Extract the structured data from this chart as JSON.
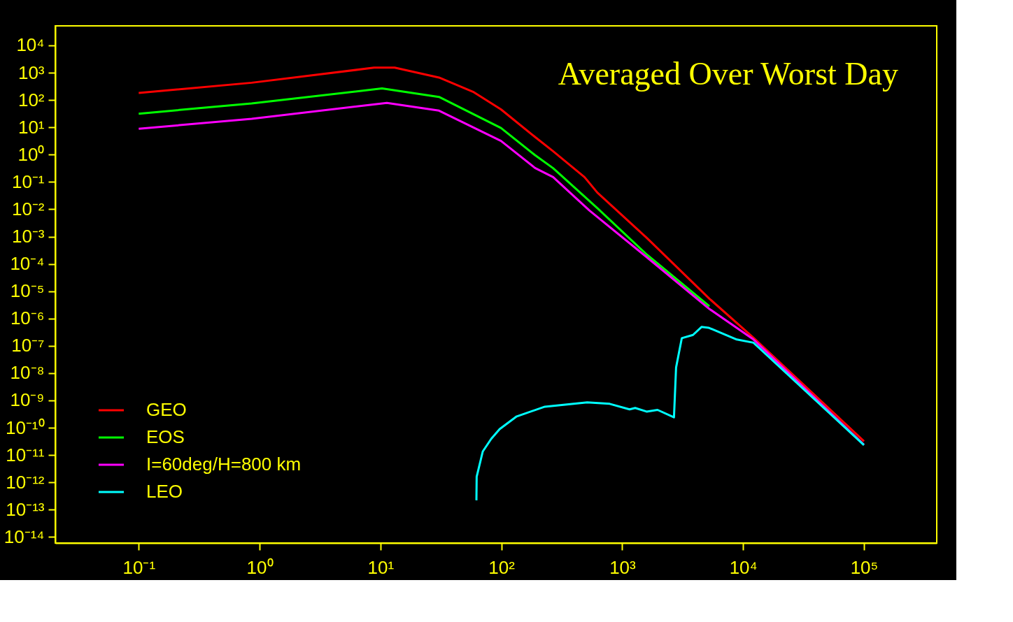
{
  "chart_data": {
    "type": "line",
    "title": "Averaged Over Worst Day",
    "log": "xy",
    "legend": "bottom left",
    "xlim": [
      0.0204,
      400000
    ],
    "ylim": [
      6e-15,
      52000
    ],
    "xticks": [
      {
        "value": 0.1,
        "label": "10⁻¹"
      },
      {
        "value": 1,
        "label": "10⁰"
      },
      {
        "value": 10,
        "label": "10¹"
      },
      {
        "value": 100,
        "label": "10²"
      },
      {
        "value": 1000,
        "label": "10³"
      },
      {
        "value": 10000,
        "label": "10⁴"
      },
      {
        "value": 100000,
        "label": "10⁵"
      }
    ],
    "yticks": [
      {
        "value": 10000.0,
        "label": "10⁴"
      },
      {
        "value": 1000.0,
        "label": "10³"
      },
      {
        "value": 100.0,
        "label": "10²"
      },
      {
        "value": 10.0,
        "label": "10¹"
      },
      {
        "value": 1,
        "label": "10⁰"
      },
      {
        "value": 0.1,
        "label": "10⁻¹"
      },
      {
        "value": 0.01,
        "label": "10⁻²"
      },
      {
        "value": 0.001,
        "label": "10⁻³"
      },
      {
        "value": 0.0001,
        "label": "10⁻⁴"
      },
      {
        "value": 1e-05,
        "label": "10⁻⁵"
      },
      {
        "value": 1e-06,
        "label": "10⁻⁶"
      },
      {
        "value": 1e-07,
        "label": "10⁻⁷"
      },
      {
        "value": 1e-08,
        "label": "10⁻⁸"
      },
      {
        "value": 1e-09,
        "label": "10⁻⁹"
      },
      {
        "value": 1e-10,
        "label": "10⁻¹⁰"
      },
      {
        "value": 1e-11,
        "label": "10⁻¹¹"
      },
      {
        "value": 1e-12,
        "label": "10⁻¹²"
      },
      {
        "value": 1e-13,
        "label": "10⁻¹³"
      },
      {
        "value": 1e-14,
        "label": "10⁻¹⁴"
      }
    ],
    "series": [
      {
        "name": "GEO",
        "color": "#ff0000",
        "x": [
          0.1,
          0.86,
          8.85,
          13.1,
          30.5,
          58.3,
          99.3,
          190,
          268,
          487,
          623,
          1596,
          5260,
          12200,
          100000
        ],
        "values": [
          181,
          430,
          1530,
          1530,
          665,
          201,
          45.5,
          4.43,
          1.33,
          0.151,
          0.0407,
          0.000897,
          5.33e-06,
          1.96e-07,
          3.2e-11
        ]
      },
      {
        "name": "EOS",
        "color": "#00ff00",
        "x": [
          0.1,
          0.86,
          10.3,
          30.5,
          99.3,
          190,
          268,
          623,
          1596,
          5260
        ],
        "values": [
          31.5,
          75.5,
          266,
          130,
          9.46,
          0.96,
          0.32,
          0.011,
          0.000219,
          2.8e-06
        ]
      },
      {
        "name": "I=60deg/H=800 km",
        "color": "#ff00ff",
        "x": [
          0.1,
          0.86,
          11.3,
          30.5,
          99.3,
          190,
          268,
          537,
          1596,
          5260,
          12200,
          100000
        ],
        "values": [
          8.9,
          20.4,
          78.7,
          40.8,
          3.18,
          0.325,
          0.151,
          0.0089,
          0.000176,
          2.24e-06,
          1.7e-07,
          2.4e-11
        ]
      },
      {
        "name": "LEO",
        "color": "#00ffff",
        "x": [
          62.2,
          62.5,
          70.2,
          82.4,
          96.8,
          134,
          229,
          513,
          788,
          1150,
          1280,
          1590,
          1960,
          2680,
          2790,
          3110,
          3850,
          4530,
          5180,
          8870,
          12200,
          100000
        ],
        "values": [
          2.2e-13,
          1.6e-12,
          1.35e-11,
          3.9e-11,
          8.9e-11,
          2.6e-10,
          5.9e-10,
          8.5e-10,
          7.5e-10,
          4.7e-10,
          5.3e-10,
          3.9e-10,
          4.5e-10,
          2.4e-10,
          1.6e-08,
          1.9e-07,
          2.5e-07,
          4.9e-07,
          4.6e-07,
          1.7e-07,
          1.3e-07,
          2.3e-11
        ]
      }
    ]
  }
}
